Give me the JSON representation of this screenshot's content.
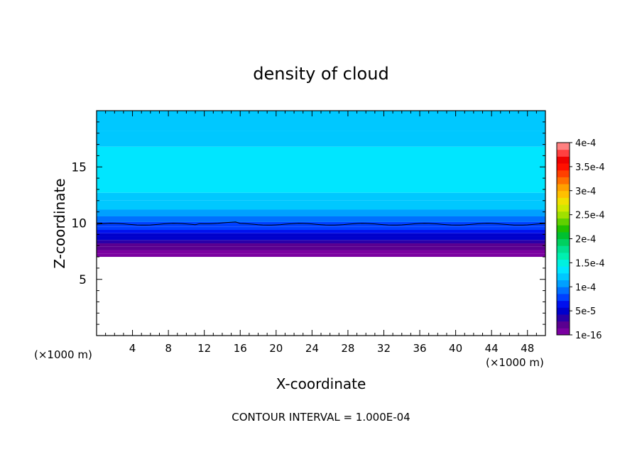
{
  "chart_data": {
    "type": "heatmap",
    "title": "density of cloud",
    "xlabel": "X-coordinate",
    "ylabel": "Z-coordinate",
    "x_unit_left": "(×1000 m)",
    "x_unit_right": "(×1000 m)",
    "xlim": [
      0,
      50
    ],
    "ylim": [
      0,
      20
    ],
    "xticks": [
      4,
      8,
      12,
      16,
      20,
      24,
      28,
      32,
      36,
      40,
      44,
      48
    ],
    "yticks": [
      5,
      10,
      15
    ],
    "annotation": "CONTOUR INTERVAL = 1.000E-04",
    "contour_line": {
      "z": 9.9
    },
    "cloud_base_z": 7.0,
    "colorbar": {
      "ticks": [
        "4e-4",
        "3.5e-4",
        "3e-4",
        "2.5e-4",
        "2e-4",
        "1.5e-4",
        "1e-4",
        "5e-5",
        "1e-16"
      ],
      "tick_values": [
        0.0004,
        0.00035,
        0.0003,
        0.00025,
        0.0002,
        0.00015,
        0.0001,
        5e-05,
        1e-16
      ],
      "colors": [
        "#7a00a0",
        "#5a0090",
        "#2a00a8",
        "#0000cc",
        "#0010ee",
        "#0040ff",
        "#0070ff",
        "#00a0ff",
        "#00c8ff",
        "#00e6ff",
        "#00f0e0",
        "#00f0b0",
        "#00e090",
        "#00d060",
        "#00c030",
        "#20c000",
        "#60d000",
        "#a0e000",
        "#d0e800",
        "#f0e000",
        "#ffc000",
        "#ffa000",
        "#ff7000",
        "#ff4000",
        "#ff1000",
        "#ee0000",
        "#ff4040",
        "#ff8080"
      ]
    },
    "layers": [
      {
        "z": [
          7.0,
          7.3
        ],
        "value": 1e-16
      },
      {
        "z": [
          7.3,
          7.6
        ],
        "value": 5e-06
      },
      {
        "z": [
          7.6,
          7.9
        ],
        "value": 1.5e-05
      },
      {
        "z": [
          7.9,
          8.2
        ],
        "value": 2.5e-05
      },
      {
        "z": [
          8.2,
          8.5
        ],
        "value": 3.5e-05
      },
      {
        "z": [
          8.5,
          8.8
        ],
        "value": 4.5e-05
      },
      {
        "z": [
          8.8,
          9.1
        ],
        "value": 5.5e-05
      },
      {
        "z": [
          9.1,
          9.4
        ],
        "value": 6.5e-05
      },
      {
        "z": [
          9.4,
          9.7
        ],
        "value": 7.5e-05
      },
      {
        "z": [
          9.7,
          10.1
        ],
        "value": 8.5e-05
      },
      {
        "z": [
          10.1,
          10.6
        ],
        "value": 9.5e-05
      },
      {
        "z": [
          10.6,
          11.2
        ],
        "value": 0.000105
      },
      {
        "z": [
          11.2,
          12.0
        ],
        "value": 0.000115
      },
      {
        "z": [
          12.0,
          12.7
        ],
        "value": 0.000125
      },
      {
        "z": [
          12.7,
          16.8
        ],
        "value": 0.000135
      },
      {
        "z": [
          16.8,
          18.2
        ],
        "value": 0.000125
      },
      {
        "z": [
          18.2,
          20.0
        ],
        "value": 0.000115
      }
    ]
  }
}
